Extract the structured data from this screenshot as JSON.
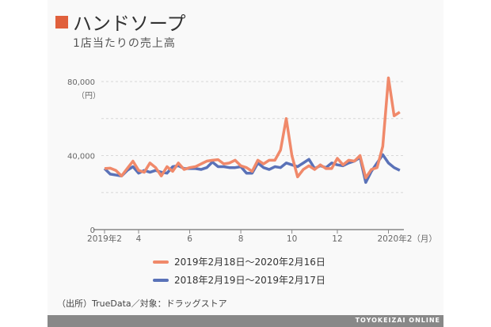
{
  "title": "ハンドソープ",
  "subtitle": "1店当たりの売上高",
  "source": "（出所）TrueData／対象：ドラッグストア",
  "footer": "TOYOKEIZAI ONLINE",
  "colors": {
    "accent": "#e0603c",
    "series_2019": "#f0896a",
    "series_2018": "#5a72b8"
  },
  "chart_data": {
    "type": "line",
    "ylabel": "（円）",
    "ylim": [
      0,
      90000
    ],
    "yticks": [
      {
        "value": 0,
        "label": "0"
      },
      {
        "value": 40000,
        "label": "40,000"
      },
      {
        "value": 80000,
        "label": "80,000"
      }
    ],
    "gridlines": [
      20000,
      40000,
      60000,
      80000
    ],
    "x_start_label": "weekly",
    "xticks": [
      {
        "week": 0,
        "label": "2019年2"
      },
      {
        "week": 6,
        "label": "4"
      },
      {
        "week": 15,
        "label": "6"
      },
      {
        "week": 24,
        "label": "8"
      },
      {
        "week": 33,
        "label": "10"
      },
      {
        "week": 41,
        "label": "12"
      },
      {
        "week": 50,
        "label": "2020年2（月）"
      }
    ],
    "legend_position": "bottom",
    "series": [
      {
        "name": "2019年2月18日～2020年2月16日",
        "color": "#f0896a",
        "values": [
          33000,
          33200,
          32000,
          29000,
          33000,
          37000,
          32000,
          31000,
          36000,
          33500,
          29000,
          34000,
          31500,
          36000,
          32500,
          33500,
          34000,
          35500,
          37000,
          37500,
          37800,
          35500,
          36000,
          37500,
          34500,
          33500,
          31500,
          37500,
          35500,
          37500,
          37500,
          43000,
          60000,
          40000,
          28500,
          32500,
          34500,
          32500,
          35000,
          33000,
          33000,
          38500,
          35000,
          37500,
          37000,
          40000,
          28000,
          32500,
          33500,
          45000,
          82000,
          61500,
          63500
        ]
      },
      {
        "name": "2018年2月19日～2019年2月17日",
        "color": "#5a72b8",
        "values": [
          33000,
          30000,
          29500,
          29000,
          32000,
          34000,
          30500,
          32000,
          31000,
          32000,
          31000,
          30500,
          34000,
          34500,
          33000,
          33000,
          33000,
          32500,
          33500,
          36500,
          34000,
          34000,
          33500,
          33500,
          34000,
          30500,
          30500,
          36000,
          33500,
          32500,
          34000,
          33500,
          36000,
          35000,
          34000,
          36000,
          38000,
          33000,
          34500,
          33500,
          36000,
          35000,
          34500,
          36000,
          37000,
          39000,
          25500,
          31500,
          36000,
          40500,
          36000,
          33500,
          32000
        ]
      }
    ]
  }
}
